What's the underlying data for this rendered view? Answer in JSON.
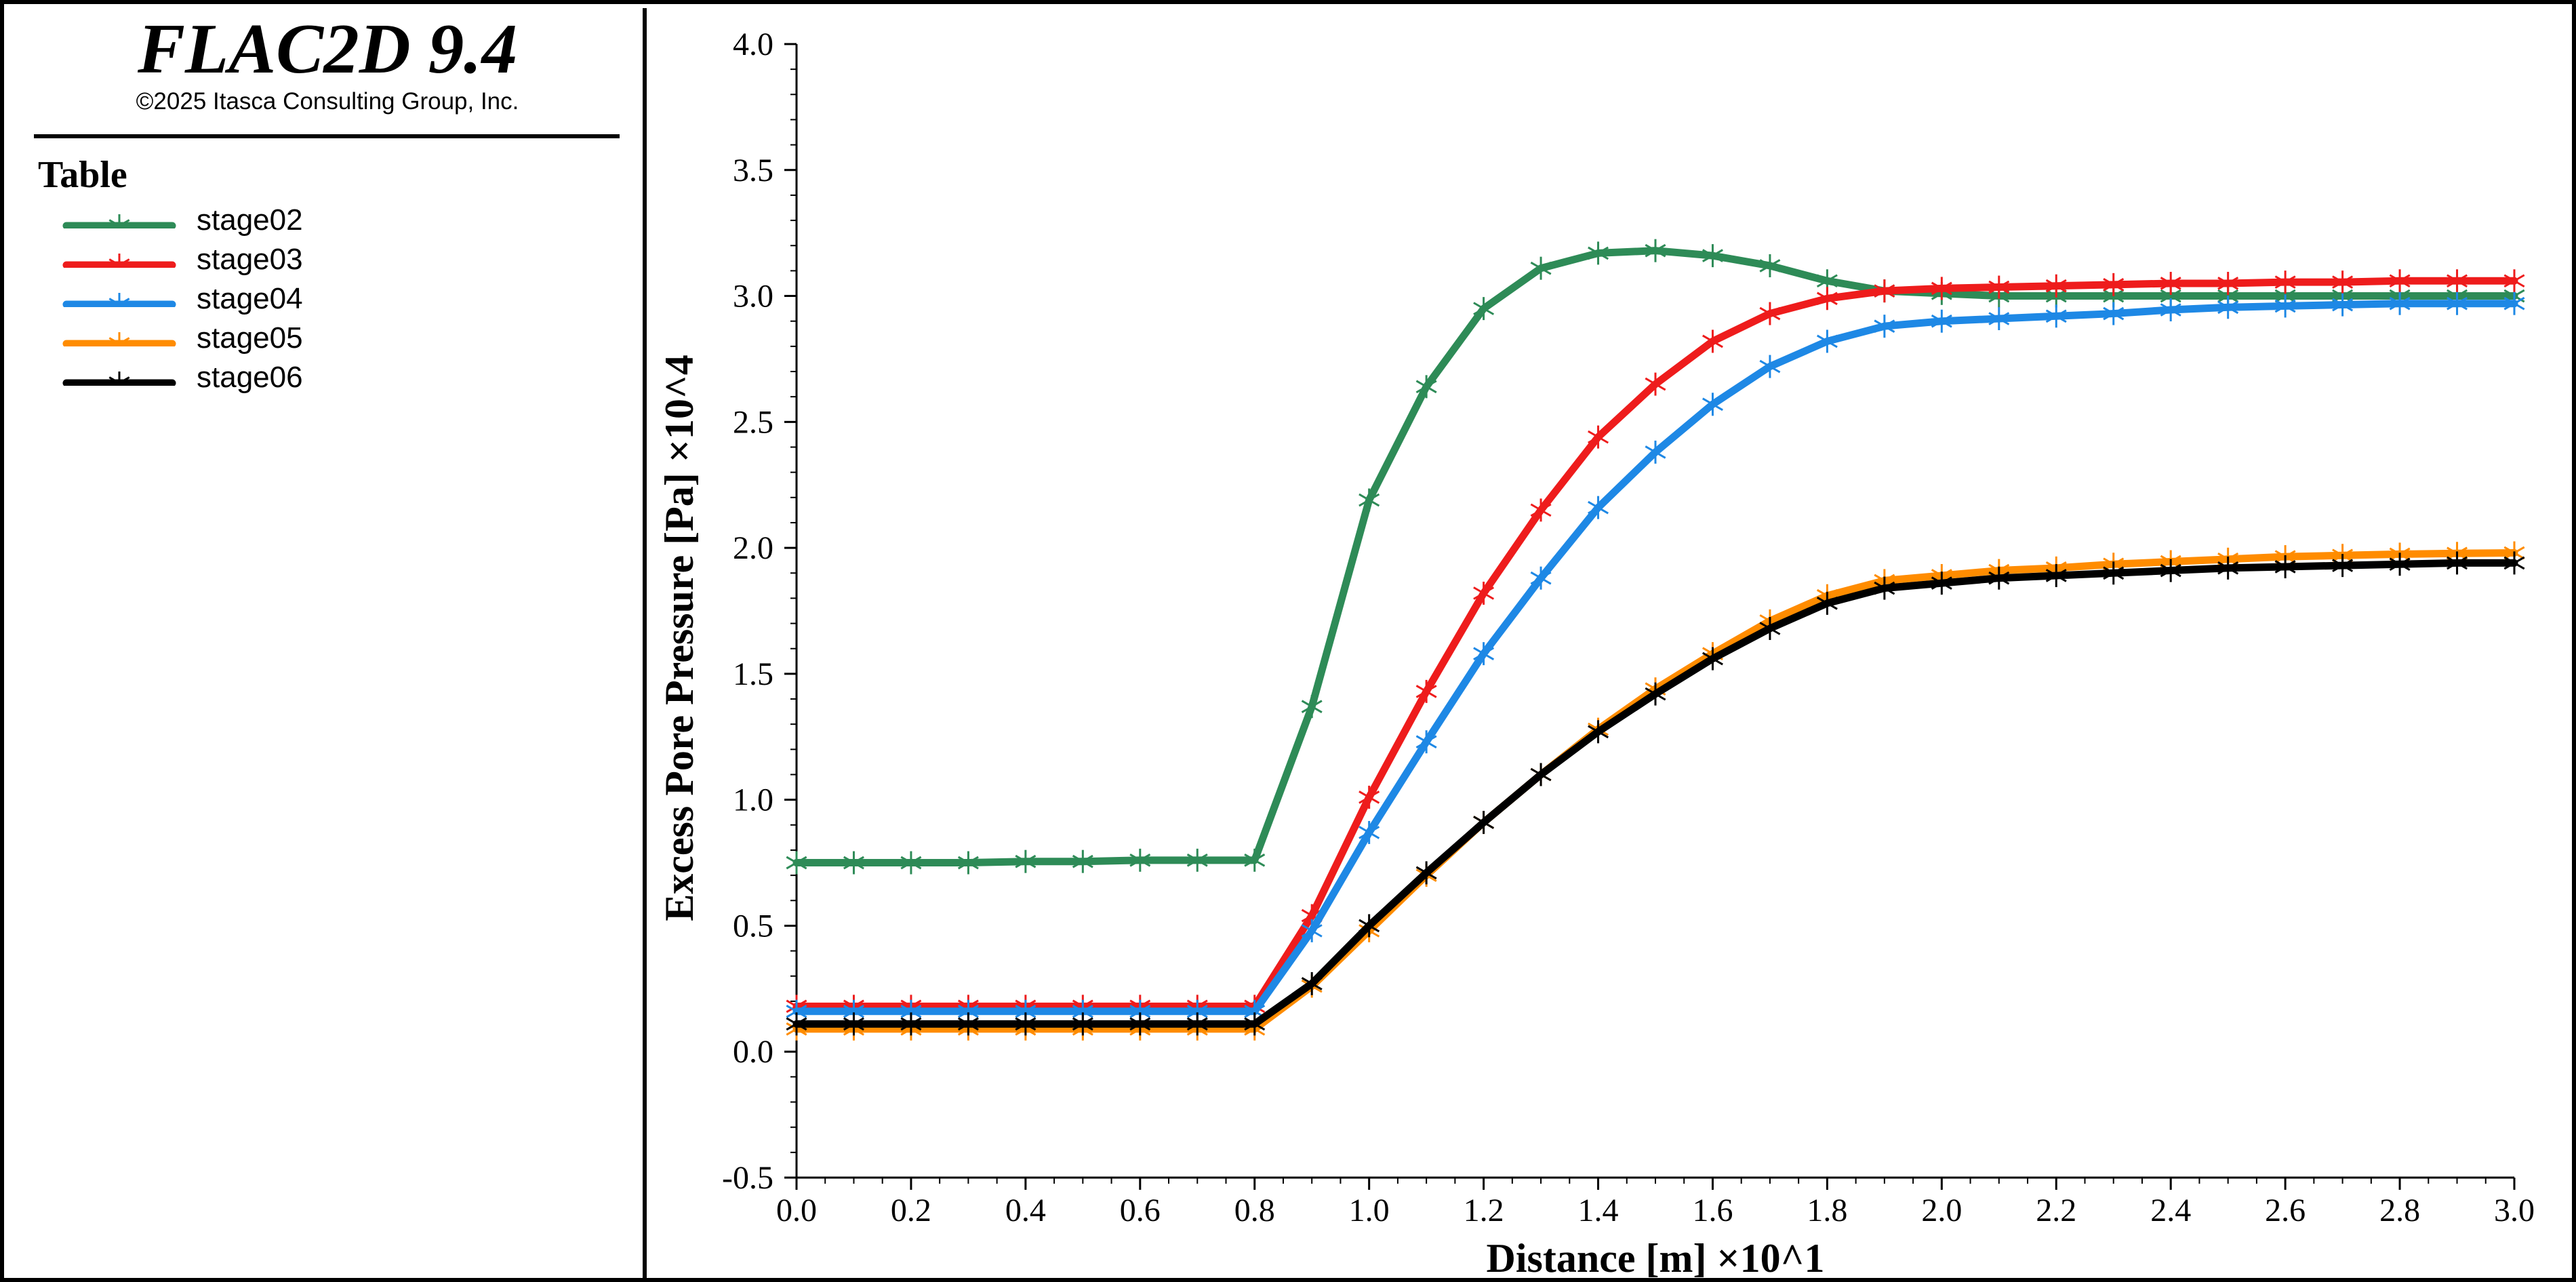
{
  "app": {
    "title": "FLAC2D 9.4",
    "copyright": "©2025 Itasca Consulting Group, Inc."
  },
  "legend": {
    "title": "Table"
  },
  "chart_data": {
    "type": "line",
    "xlabel": "Distance [m] ×10^1",
    "ylabel": "Excess Pore Pressure [Pa] ×10^4",
    "xlim": [
      0.0,
      3.0
    ],
    "ylim": [
      -0.5,
      4.0
    ],
    "xticks": [
      "0.0",
      "0.2",
      "0.4",
      "0.6",
      "0.8",
      "1.0",
      "1.2",
      "1.4",
      "1.6",
      "1.8",
      "2.0",
      "2.2",
      "2.4",
      "2.6",
      "2.8",
      "3.0"
    ],
    "yticks": [
      "-0.5",
      "0.0",
      "0.5",
      "1.0",
      "1.5",
      "2.0",
      "2.5",
      "3.0",
      "3.5",
      "4.0"
    ],
    "grid": false,
    "marker": "asterisk",
    "x": [
      0.0,
      0.1,
      0.2,
      0.3,
      0.4,
      0.5,
      0.6,
      0.7,
      0.8,
      0.9,
      1.0,
      1.1,
      1.2,
      1.3,
      1.4,
      1.5,
      1.6,
      1.7,
      1.8,
      1.9,
      2.0,
      2.1,
      2.2,
      2.3,
      2.4,
      2.5,
      2.6,
      2.7,
      2.8,
      2.9,
      3.0
    ],
    "series": [
      {
        "name": "stage02",
        "color": "#2e8b57",
        "values": [
          0.75,
          0.75,
          0.75,
          0.75,
          0.755,
          0.755,
          0.76,
          0.76,
          0.76,
          1.37,
          2.19,
          2.64,
          2.95,
          3.11,
          3.17,
          3.18,
          3.16,
          3.12,
          3.06,
          3.02,
          3.01,
          3.0,
          3.0,
          3.0,
          3.0,
          3.0,
          3.0,
          3.0,
          3.0,
          3.0,
          3.0
        ]
      },
      {
        "name": "stage03",
        "color": "#ee1c1c",
        "values": [
          0.18,
          0.18,
          0.18,
          0.18,
          0.18,
          0.18,
          0.18,
          0.18,
          0.18,
          0.54,
          1.01,
          1.43,
          1.82,
          2.15,
          2.44,
          2.65,
          2.82,
          2.93,
          2.99,
          3.02,
          3.03,
          3.035,
          3.04,
          3.045,
          3.05,
          3.05,
          3.055,
          3.055,
          3.06,
          3.06,
          3.06
        ]
      },
      {
        "name": "stage04",
        "color": "#1e88e5",
        "values": [
          0.16,
          0.16,
          0.16,
          0.16,
          0.16,
          0.16,
          0.16,
          0.16,
          0.16,
          0.48,
          0.87,
          1.23,
          1.58,
          1.88,
          2.16,
          2.38,
          2.57,
          2.72,
          2.82,
          2.88,
          2.9,
          2.91,
          2.92,
          2.93,
          2.945,
          2.955,
          2.96,
          2.965,
          2.97,
          2.97,
          2.97
        ]
      },
      {
        "name": "stage05",
        "color": "#ff8c00",
        "values": [
          0.09,
          0.09,
          0.09,
          0.09,
          0.09,
          0.09,
          0.09,
          0.09,
          0.09,
          0.26,
          0.48,
          0.7,
          0.91,
          1.1,
          1.28,
          1.44,
          1.58,
          1.71,
          1.81,
          1.87,
          1.89,
          1.91,
          1.92,
          1.935,
          1.945,
          1.955,
          1.965,
          1.97,
          1.975,
          1.978,
          1.98
        ]
      },
      {
        "name": "stage06",
        "color": "#000000",
        "values": [
          0.11,
          0.11,
          0.11,
          0.11,
          0.11,
          0.11,
          0.11,
          0.11,
          0.11,
          0.27,
          0.5,
          0.71,
          0.91,
          1.1,
          1.27,
          1.42,
          1.56,
          1.68,
          1.78,
          1.84,
          1.86,
          1.88,
          1.89,
          1.9,
          1.91,
          1.92,
          1.925,
          1.93,
          1.935,
          1.94,
          1.94
        ]
      }
    ]
  }
}
